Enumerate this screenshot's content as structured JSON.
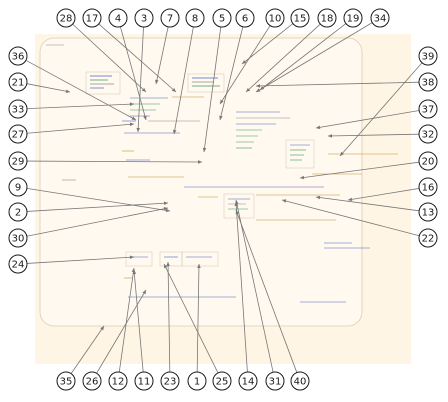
{
  "colors": {
    "panel_fill": "#fff5e4",
    "panel_stroke": "#d9cdb7",
    "inner_panel_fill": "#fff9ef",
    "code_blue": "#4a66c4",
    "code_orange": "#c8902a",
    "code_green": "#3f9a5a",
    "code_gray": "#8c8c8c",
    "callout_stroke": "#1a1a1a",
    "leader": "#777777"
  },
  "callouts": [
    {
      "id": "1",
      "label": "1"
    },
    {
      "id": "2",
      "label": "2"
    },
    {
      "id": "3",
      "label": "3"
    },
    {
      "id": "4",
      "label": "4"
    },
    {
      "id": "5",
      "label": "5"
    },
    {
      "id": "6",
      "label": "6"
    },
    {
      "id": "7",
      "label": "7"
    },
    {
      "id": "8",
      "label": "8"
    },
    {
      "id": "9",
      "label": "9"
    },
    {
      "id": "10",
      "label": "10"
    },
    {
      "id": "11",
      "label": "11"
    },
    {
      "id": "12",
      "label": "12"
    },
    {
      "id": "13",
      "label": "13"
    },
    {
      "id": "14",
      "label": "14"
    },
    {
      "id": "15",
      "label": "15"
    },
    {
      "id": "16",
      "label": "16"
    },
    {
      "id": "17",
      "label": "17"
    },
    {
      "id": "18",
      "label": "18"
    },
    {
      "id": "19",
      "label": "19"
    },
    {
      "id": "20",
      "label": "20"
    },
    {
      "id": "21",
      "label": "21"
    },
    {
      "id": "22",
      "label": "22"
    },
    {
      "id": "23",
      "label": "23"
    },
    {
      "id": "24",
      "label": "24"
    },
    {
      "id": "25",
      "label": "25"
    },
    {
      "id": "26",
      "label": "26"
    },
    {
      "id": "27",
      "label": "27"
    },
    {
      "id": "28",
      "label": "28"
    },
    {
      "id": "29",
      "label": "29"
    },
    {
      "id": "30",
      "label": "30"
    },
    {
      "id": "31",
      "label": "31"
    },
    {
      "id": "32",
      "label": "32"
    },
    {
      "id": "33",
      "label": "33"
    },
    {
      "id": "34",
      "label": "34"
    },
    {
      "id": "35",
      "label": "35"
    },
    {
      "id": "36",
      "label": "36"
    },
    {
      "id": "37",
      "label": "37"
    },
    {
      "id": "38",
      "label": "38"
    },
    {
      "id": "39",
      "label": "39"
    },
    {
      "id": "40",
      "label": "40"
    }
  ]
}
